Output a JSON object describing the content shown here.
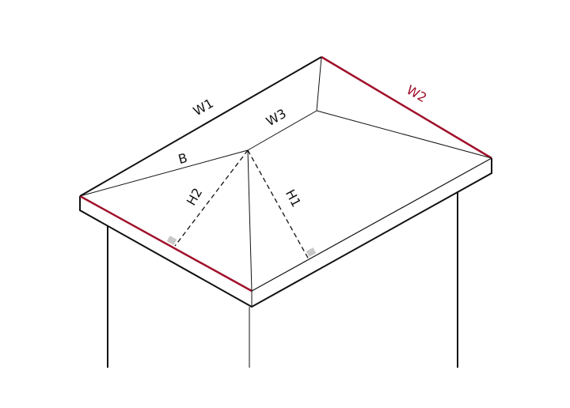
{
  "labels": {
    "w1": "W1",
    "w2": "W2",
    "w3": "W3",
    "b": "B",
    "h1": "H1",
    "h2": "H2"
  },
  "colors": {
    "highlight": "#a0102a",
    "line": "#111111",
    "right_angle_marker": "#c8c8c8"
  }
}
